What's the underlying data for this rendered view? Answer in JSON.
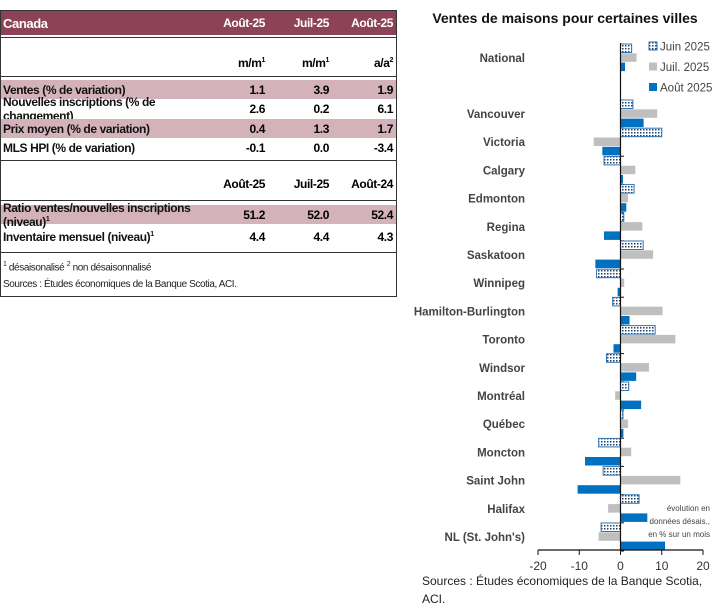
{
  "table": {
    "header": {
      "title": "Canada",
      "cols": [
        "Août-25",
        "Juil-25",
        "Août-25"
      ]
    },
    "units": [
      "m/m",
      "m/m",
      "a/a"
    ],
    "units_sup": [
      "1",
      "1",
      "2"
    ],
    "rows1": [
      {
        "label": "Ventes (% de variation)",
        "values": [
          "1.1",
          "3.9",
          "1.9"
        ]
      },
      {
        "label": "Nouvelles inscriptions (% de changement)",
        "values": [
          "2.6",
          "0.2",
          "6.1"
        ]
      },
      {
        "label": "Prix moyen (% de variation)",
        "values": [
          "0.4",
          "1.3",
          "1.7"
        ]
      },
      {
        "label": "MLS HPI (% de variation)",
        "values": [
          "-0.1",
          "0.0",
          "-3.4"
        ]
      }
    ],
    "header2": [
      "Août-25",
      "Juil-25",
      "Août-24"
    ],
    "rows2": [
      {
        "label": "Ratio ventes/nouvelles inscriptions (niveau)",
        "sup": "1",
        "values": [
          "51.2",
          "52.0",
          "52.4"
        ]
      },
      {
        "label": "Inventaire mensuel (niveau)",
        "sup": "1",
        "values": [
          "4.4",
          "4.4",
          "4.3"
        ]
      }
    ],
    "footnote_sup1": "1",
    "footnote1": "désaisonalisé",
    "footnote_sup2": "2",
    "footnote2": "non désaisonnalisé",
    "source": "Sources : Études économiques de la Banque Scotia, ACI."
  },
  "chart_data": {
    "type": "bar",
    "orientation": "horizontal",
    "title": "Ventes de maisons pour certaines villes",
    "categories": [
      "National",
      "Vancouver",
      "Victoria",
      "Calgary",
      "Edmonton",
      "Regina",
      "Saskatoon",
      "Winnipeg",
      "Hamilton-Burlington",
      "Toronto",
      "Windsor",
      "Montréal",
      "Québec",
      "Moncton",
      "Saint John",
      "Halifax",
      "NL (St. John's)"
    ],
    "series": [
      {
        "name": "Juin 2025",
        "color": "#2E75B6",
        "pattern": "dotted",
        "values": [
          2.7,
          3.0,
          10.0,
          -4.0,
          3.3,
          0.8,
          5.5,
          -5.8,
          -1.9,
          8.4,
          -3.4,
          2.0,
          0.6,
          -5.3,
          -4.2,
          4.5,
          -4.7
        ]
      },
      {
        "name": "Juil. 2025",
        "color": "#BFBFBF",
        "values": [
          3.9,
          8.9,
          -6.5,
          3.6,
          1.8,
          5.3,
          7.9,
          0.9,
          10.2,
          13.3,
          6.9,
          -1.3,
          1.8,
          2.6,
          14.5,
          -3.0,
          -5.3
        ]
      },
      {
        "name": "Août 2025",
        "color": "#0070C0",
        "values": [
          1.1,
          5.6,
          -4.4,
          0.6,
          1.4,
          -4.0,
          -6.1,
          -0.7,
          2.2,
          -1.7,
          3.8,
          5.0,
          0.7,
          -8.6,
          -10.4,
          6.5,
          10.8
        ]
      }
    ],
    "xlim": [
      -20,
      20
    ],
    "xticks": [
      "-20",
      "-10",
      "0",
      "10",
      "20"
    ],
    "annotation": [
      "évolution en",
      "données désais.,",
      "en % sur un mois"
    ],
    "legend_position": "top-right",
    "grid": false,
    "source": [
      "Sources : Études économiques de la Banque Scotia,",
      "ACI."
    ]
  }
}
